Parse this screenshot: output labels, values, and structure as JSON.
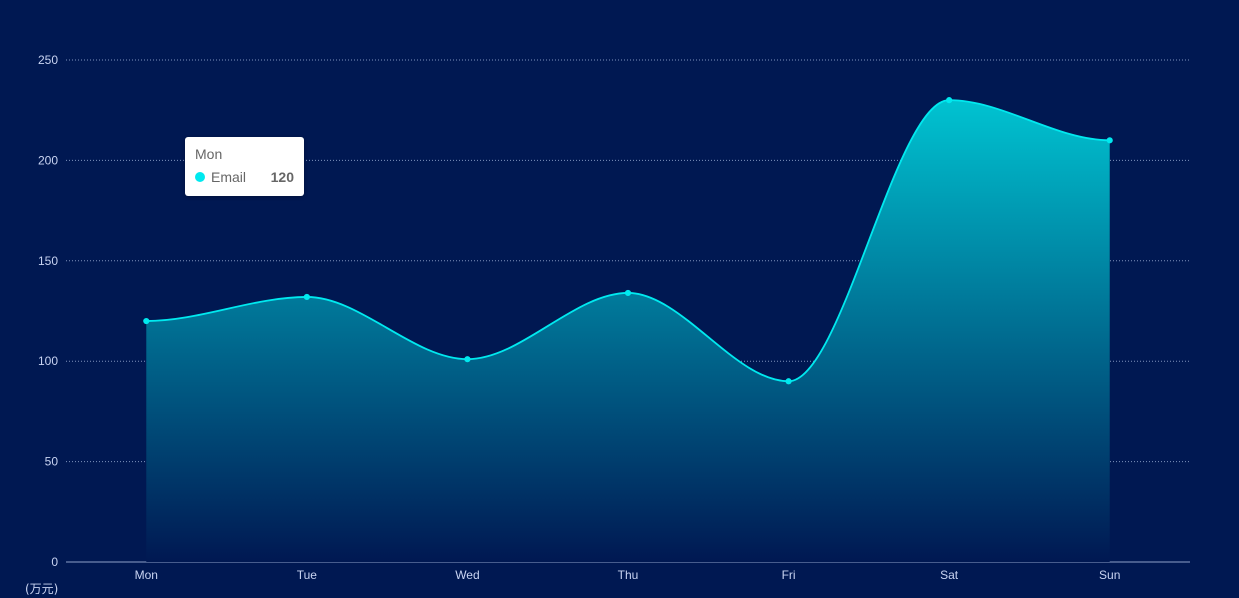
{
  "chart_data": {
    "type": "area",
    "categories": [
      "Mon",
      "Tue",
      "Wed",
      "Thu",
      "Fri",
      "Sat",
      "Sun"
    ],
    "series": [
      {
        "name": "Email",
        "values": [
          120,
          132,
          101,
          134,
          90,
          230,
          210
        ]
      }
    ],
    "ylim": [
      0,
      250
    ],
    "yticks": [
      0,
      50,
      100,
      150,
      200,
      250
    ],
    "ylabel": "(万元)",
    "grid": true,
    "smooth": true,
    "colors": {
      "background": "#001852",
      "line": "#00e9ef",
      "area_top": "#00c3d1",
      "area_bottom": "#001852",
      "grid": "#9fb2d8",
      "axis_text": "#c9d4f2"
    }
  },
  "tooltip": {
    "title": "Mon",
    "series_name": "Email",
    "value": "120"
  }
}
